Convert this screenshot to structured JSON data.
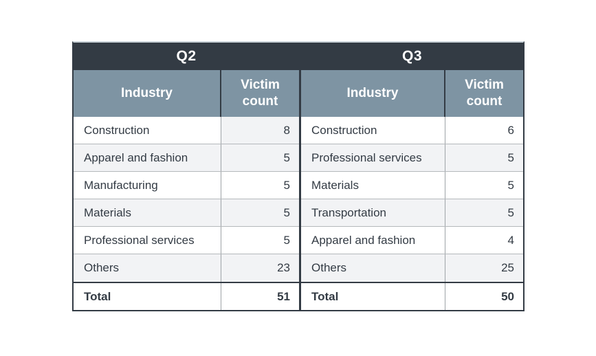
{
  "figure": {
    "description_labels": {
      "q2_title": "Q2",
      "q3_title": "Q3"
    }
  },
  "colors": {
    "header_dark": "#333B44",
    "header_blue_gray": "#7E94A3",
    "row_alternate": "#F2F3F5",
    "text": "#333B44",
    "grid_line": "#B4B8BB",
    "column_line": "#9EA3A7",
    "outer_border": "#333B44",
    "top_edge_light": "#C9D2D8",
    "header_text": "#FFFFFF"
  },
  "chart_data": [
    {
      "type": "table",
      "title": "Q2",
      "columns": [
        "Industry",
        "Victim count"
      ],
      "rows": [
        [
          "Construction",
          8
        ],
        [
          "Apparel and fashion",
          5
        ],
        [
          "Manufacturing",
          5
        ],
        [
          "Materials",
          5
        ],
        [
          "Professional services",
          5
        ],
        [
          "Others",
          23
        ],
        [
          "Total",
          51
        ]
      ],
      "total": {
        "label": "Total",
        "value": 51
      }
    },
    {
      "type": "table",
      "title": "Q3",
      "columns": [
        "Industry",
        "Victim count"
      ],
      "rows": [
        [
          "Construction",
          6
        ],
        [
          "Professional services",
          5
        ],
        [
          "Materials",
          5
        ],
        [
          "Transportation",
          5
        ],
        [
          "Apparel and fashion",
          4
        ],
        [
          "Others",
          25
        ],
        [
          "Total",
          50
        ]
      ],
      "total": {
        "label": "Total",
        "value": 50
      }
    }
  ]
}
